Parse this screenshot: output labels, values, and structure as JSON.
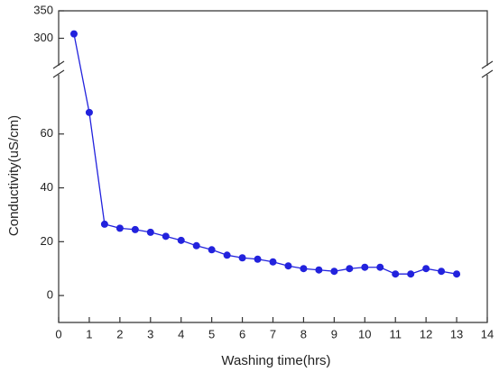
{
  "chart_data": {
    "type": "line",
    "x_label": "Washing time(hrs)",
    "y_label": "Conductivity(uS/cm)",
    "x": [
      0.5,
      1,
      1.5,
      2,
      2.5,
      3,
      3.5,
      4,
      4.5,
      5,
      5.5,
      6,
      6.5,
      7,
      7.5,
      8,
      8.5,
      9,
      9.5,
      10,
      10.5,
      11,
      11.5,
      12,
      12.5,
      13
    ],
    "series": [
      {
        "color": "#2222dd",
        "values": [
          308,
          68,
          26.5,
          25,
          24.5,
          23.5,
          22,
          20.5,
          18.5,
          17,
          15,
          14,
          13.5,
          12.5,
          11,
          10,
          9.5,
          9,
          10,
          10.5,
          10.5,
          8,
          8,
          10,
          9,
          8
        ]
      }
    ],
    "xlim": [
      0,
      14
    ],
    "xticks": [
      0,
      1,
      2,
      3,
      4,
      5,
      6,
      7,
      8,
      9,
      10,
      11,
      12,
      13,
      14
    ],
    "y_segments": [
      {
        "ylim": [
          -10,
          82
        ],
        "yticks": [
          0,
          20,
          40,
          60
        ]
      },
      {
        "ylim": [
          250,
          350
        ],
        "yticks": [
          300,
          350
        ]
      }
    ]
  }
}
